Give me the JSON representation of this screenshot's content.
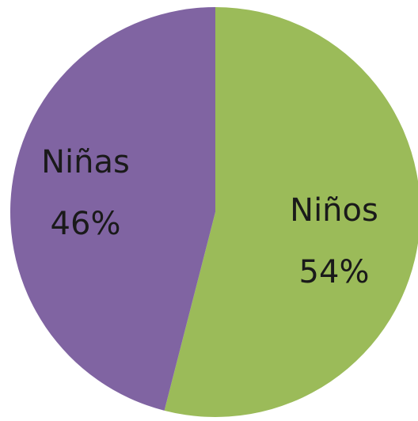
{
  "chart_data": {
    "type": "pie",
    "title": "",
    "start_angle_deg": 0,
    "direction": "clockwise",
    "slices": [
      {
        "name": "Niños",
        "value": 54,
        "label": "Niños",
        "percent_label": "54%",
        "color": "#9BBB59"
      },
      {
        "name": "Niñas",
        "value": 46,
        "label": "Niñas",
        "percent_label": "46%",
        "color": "#8064A2"
      }
    ]
  }
}
